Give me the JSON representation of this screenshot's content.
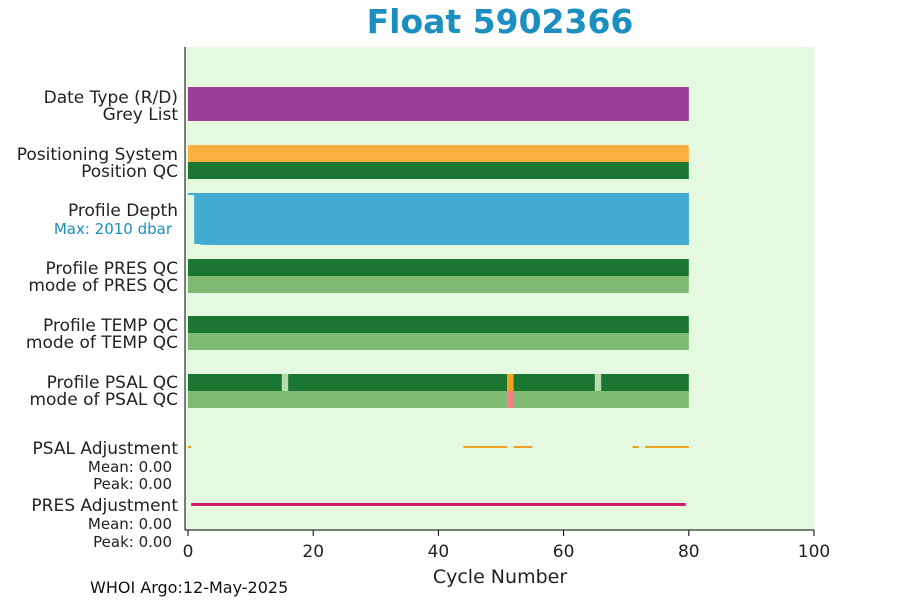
{
  "title": "Float 5902366",
  "footer": "WHOI Argo:12-May-2025",
  "colors": {
    "background": "#e5f8e0",
    "data_type": "#993d99",
    "positioning": "#f9b040",
    "good_qc": "#1a7631",
    "mode_good": "#7fba72",
    "depth": "#41abd0",
    "orange": "#f7a020",
    "salmon": "#f08080",
    "light_gap": "#b8dcb0",
    "psal_adj": "#f0a020",
    "pres_adj": "#d41a6e",
    "title": "#1a8fc0"
  },
  "chart_data": {
    "type": "bar",
    "title": "Float 5902366",
    "xlabel": "Cycle Number",
    "xlim": [
      0,
      100
    ],
    "xticks": [
      "0",
      "20",
      "40",
      "60",
      "80",
      "100"
    ],
    "cycles": [
      0,
      80
    ],
    "rows": [
      {
        "label": "Date Type (R/D)",
        "sublabel": "Grey List",
        "segments": [
          {
            "start": 0,
            "end": 80,
            "color": "data_type"
          }
        ]
      },
      {
        "label": "Positioning System",
        "segments": [
          {
            "start": 0,
            "end": 80,
            "color": "positioning"
          }
        ]
      },
      {
        "label": "Position QC",
        "segments": [
          {
            "start": 0,
            "end": 80,
            "color": "good_qc"
          }
        ]
      },
      {
        "label": "Profile Depth",
        "max_label": "Max: 2010 dbar",
        "depth_profile": [
          [
            0,
            40
          ],
          [
            1,
            1970
          ],
          [
            2,
            2005
          ],
          [
            5,
            2010
          ],
          [
            80,
            2010
          ]
        ]
      },
      {
        "label": "Profile PRES QC",
        "segments": [
          {
            "start": 0,
            "end": 80,
            "color": "good_qc"
          }
        ]
      },
      {
        "label": "mode of PRES QC",
        "segments": [
          {
            "start": 0,
            "end": 80,
            "color": "mode_good"
          }
        ]
      },
      {
        "label": "Profile TEMP QC",
        "segments": [
          {
            "start": 0,
            "end": 80,
            "color": "good_qc"
          }
        ]
      },
      {
        "label": "mode of TEMP QC",
        "segments": [
          {
            "start": 0,
            "end": 80,
            "color": "mode_good"
          }
        ]
      },
      {
        "label": "Profile PSAL QC",
        "segments": [
          {
            "start": 0,
            "end": 15,
            "color": "good_qc"
          },
          {
            "start": 15,
            "end": 16,
            "color": "light_gap"
          },
          {
            "start": 16,
            "end": 51,
            "color": "good_qc"
          },
          {
            "start": 51,
            "end": 52,
            "color": "orange"
          },
          {
            "start": 52,
            "end": 65,
            "color": "good_qc"
          },
          {
            "start": 65,
            "end": 66,
            "color": "light_gap"
          },
          {
            "start": 66,
            "end": 80,
            "color": "good_qc"
          }
        ]
      },
      {
        "label": "mode of PSAL QC",
        "segments": [
          {
            "start": 0,
            "end": 51,
            "color": "mode_good"
          },
          {
            "start": 51,
            "end": 52,
            "color": "salmon"
          },
          {
            "start": 52,
            "end": 80,
            "color": "mode_good"
          }
        ]
      },
      {
        "label": "PSAL Adjustment",
        "mean": "Mean: 0.00",
        "peak": "Peak: 0.00",
        "segments": [
          {
            "start": 0,
            "end": 0.5
          },
          {
            "start": 44,
            "end": 51
          },
          {
            "start": 52,
            "end": 55
          },
          {
            "start": 71,
            "end": 72
          },
          {
            "start": 73,
            "end": 80
          }
        ]
      },
      {
        "label": "PRES Adjustment",
        "mean": "Mean: 0.00",
        "peak": "Peak: 0.00",
        "segments": [
          {
            "start": 0.5,
            "end": 79.5
          }
        ]
      }
    ]
  }
}
